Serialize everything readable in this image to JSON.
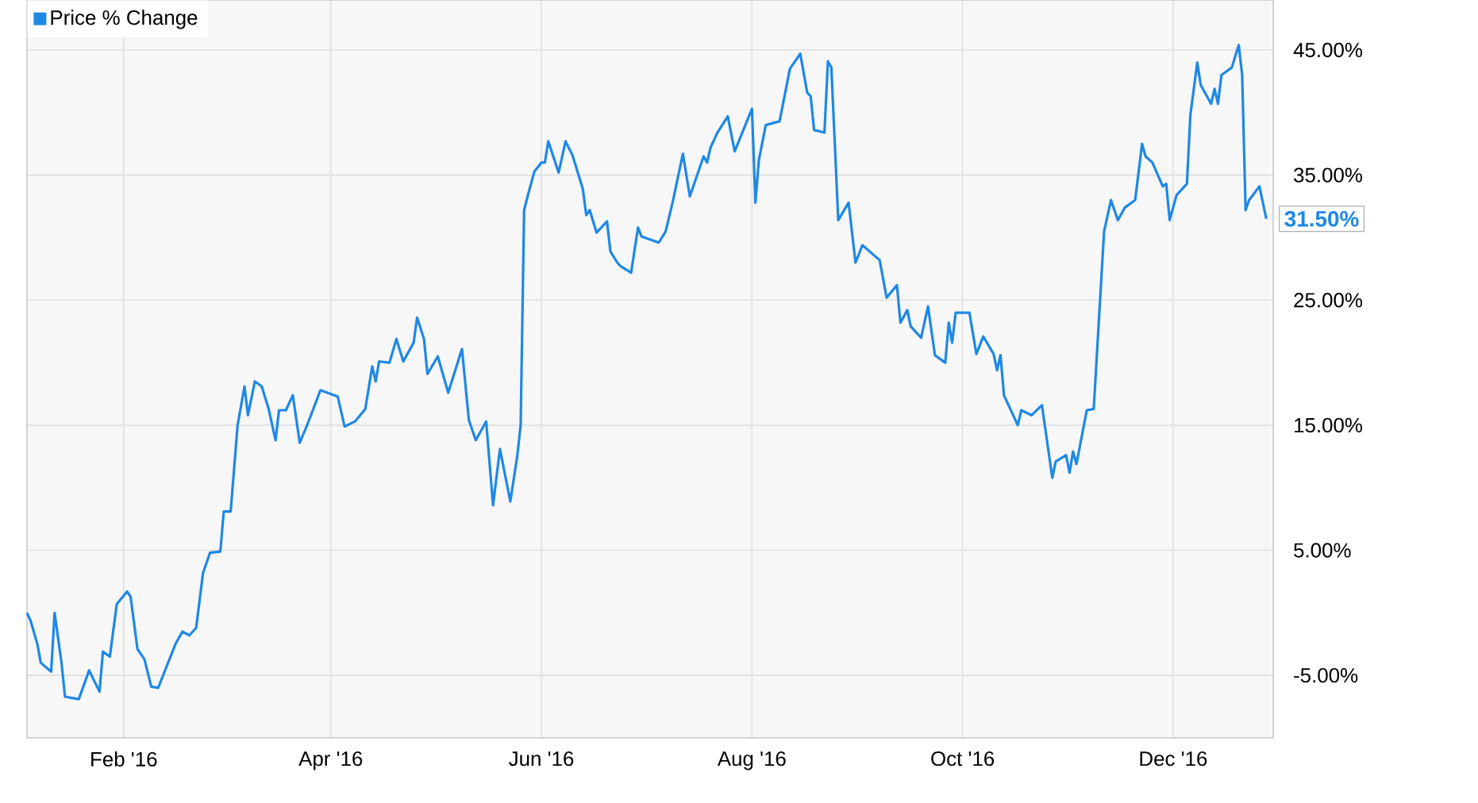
{
  "chart_data": {
    "type": "line",
    "xlim": [
      "2016-01-04",
      "2016-12-30"
    ],
    "ylim": [
      -10,
      49
    ],
    "xticks": [
      {
        "value": "2016-02-01",
        "label": "Feb '16"
      },
      {
        "value": "2016-04-01",
        "label": "Apr '16"
      },
      {
        "value": "2016-06-01",
        "label": "Jun '16"
      },
      {
        "value": "2016-08-01",
        "label": "Aug '16"
      },
      {
        "value": "2016-10-01",
        "label": "Oct '16"
      },
      {
        "value": "2016-12-01",
        "label": "Dec '16"
      }
    ],
    "yticks": [
      {
        "value": -5,
        "label": "-5.00%"
      },
      {
        "value": 5,
        "label": "5.00%"
      },
      {
        "value": 15,
        "label": "15.00%"
      },
      {
        "value": 25,
        "label": "25.00%"
      },
      {
        "value": 35,
        "label": "35.00%"
      },
      {
        "value": 45,
        "label": "45.00%"
      }
    ],
    "grid": true,
    "legend": "top left",
    "marker": "none",
    "annotations": [
      {
        "text": "31.50%",
        "x": "2016-12-28",
        "y": 31.5
      }
    ],
    "series": [
      {
        "name": "Price % Change",
        "color": "#1e88e5",
        "x": [
          "2016-01-04",
          "2016-01-05",
          "2016-01-07",
          "2016-01-08",
          "2016-01-11",
          "2016-01-12",
          "2016-01-14",
          "2016-01-15",
          "2016-01-19",
          "2016-01-22",
          "2016-01-25",
          "2016-01-26",
          "2016-01-28",
          "2016-01-30",
          "2016-02-02",
          "2016-02-03",
          "2016-02-05",
          "2016-02-07",
          "2016-02-09",
          "2016-02-11",
          "2016-02-16",
          "2016-02-18",
          "2016-02-20",
          "2016-02-22",
          "2016-02-24",
          "2016-02-26",
          "2016-02-29",
          "2016-03-01",
          "2016-03-03",
          "2016-03-05",
          "2016-03-07",
          "2016-03-08",
          "2016-03-10",
          "2016-03-12",
          "2016-03-14",
          "2016-03-16",
          "2016-03-17",
          "2016-03-19",
          "2016-03-21",
          "2016-03-23",
          "2016-03-25",
          "2016-03-29",
          "2016-04-03",
          "2016-04-05",
          "2016-04-08",
          "2016-04-11",
          "2016-04-13",
          "2016-04-14",
          "2016-04-15",
          "2016-04-18",
          "2016-04-20",
          "2016-04-22",
          "2016-04-25",
          "2016-04-26",
          "2016-04-28",
          "2016-04-29",
          "2016-05-02",
          "2016-05-05",
          "2016-05-09",
          "2016-05-11",
          "2016-05-13",
          "2016-05-16",
          "2016-05-18",
          "2016-05-20",
          "2016-05-23",
          "2016-05-25",
          "2016-05-26",
          "2016-05-27",
          "2016-05-28",
          "2016-05-30",
          "2016-06-01",
          "2016-06-02",
          "2016-06-03",
          "2016-06-06",
          "2016-06-08",
          "2016-06-10",
          "2016-06-13",
          "2016-06-14",
          "2016-06-15",
          "2016-06-17",
          "2016-06-20",
          "2016-06-21",
          "2016-06-23",
          "2016-06-24",
          "2016-06-27",
          "2016-06-29",
          "2016-06-30",
          "2016-07-05",
          "2016-07-07",
          "2016-07-09",
          "2016-07-12",
          "2016-07-14",
          "2016-07-18",
          "2016-07-19",
          "2016-07-20",
          "2016-07-22",
          "2016-07-25",
          "2016-07-27",
          "2016-08-01",
          "2016-08-02",
          "2016-08-03",
          "2016-08-05",
          "2016-08-09",
          "2016-08-12",
          "2016-08-15",
          "2016-08-17",
          "2016-08-18",
          "2016-08-19",
          "2016-08-22",
          "2016-08-23",
          "2016-08-24",
          "2016-08-26",
          "2016-08-29",
          "2016-08-31",
          "2016-09-02",
          "2016-09-07",
          "2016-09-09",
          "2016-09-12",
          "2016-09-13",
          "2016-09-15",
          "2016-09-16",
          "2016-09-19",
          "2016-09-21",
          "2016-09-23",
          "2016-09-26",
          "2016-09-27",
          "2016-09-28",
          "2016-09-29",
          "2016-10-03",
          "2016-10-05",
          "2016-10-07",
          "2016-10-10",
          "2016-10-11",
          "2016-10-12",
          "2016-10-13",
          "2016-10-17",
          "2016-10-18",
          "2016-10-21",
          "2016-10-24",
          "2016-10-27",
          "2016-10-28",
          "2016-10-31",
          "2016-11-01",
          "2016-11-02",
          "2016-11-03",
          "2016-11-06",
          "2016-11-08",
          "2016-11-11",
          "2016-11-13",
          "2016-11-15",
          "2016-11-17",
          "2016-11-20",
          "2016-11-22",
          "2016-11-23",
          "2016-11-25",
          "2016-11-28",
          "2016-11-29",
          "2016-11-30",
          "2016-12-02",
          "2016-12-05",
          "2016-12-06",
          "2016-12-08",
          "2016-12-09",
          "2016-12-12",
          "2016-12-13",
          "2016-12-14",
          "2016-12-15",
          "2016-12-18",
          "2016-12-20",
          "2016-12-21",
          "2016-12-22",
          "2016-12-23",
          "2016-12-26",
          "2016-12-28"
        ],
        "values": [
          0,
          -0.6,
          -2.5,
          -4.0,
          -4.7,
          0,
          -4,
          -6.7,
          -6.9,
          -4.6,
          -6.3,
          -3.1,
          -3.5,
          0.7,
          1.7,
          1.3,
          -2.9,
          -3.7,
          -5.9,
          -6.0,
          -2.5,
          -1.5,
          -1.8,
          -1.2,
          3.2,
          4.8,
          4.9,
          8.1,
          8.1,
          15.0,
          18.1,
          15.8,
          18.5,
          18.1,
          16.3,
          13.8,
          16.2,
          16.2,
          17.4,
          13.6,
          14.9,
          17.8,
          17.3,
          14.9,
          15.3,
          16.3,
          19.7,
          18.5,
          20.1,
          20.0,
          21.9,
          20.1,
          21.6,
          23.6,
          21.9,
          19.1,
          20.5,
          17.6,
          21.1,
          15.4,
          13.8,
          15.3,
          8.6,
          13.1,
          8.9,
          12.5,
          15.0,
          32.2,
          33.3,
          35.3,
          36.0,
          36.0,
          37.7,
          35.2,
          37.7,
          36.6,
          33.9,
          31.8,
          32.2,
          30.4,
          31.3,
          28.9,
          28.0,
          27.7,
          27.2,
          30.8,
          30.1,
          29.6,
          30.5,
          32.8,
          36.7,
          33.3,
          36.5,
          36.0,
          37.2,
          38.4,
          39.7,
          36.9,
          40.3,
          32.8,
          36.2,
          39.0,
          39.3,
          43.5,
          44.7,
          41.6,
          41.3,
          38.6,
          38.4,
          44.1,
          43.6,
          31.4,
          32.8,
          28.0,
          29.4,
          28.2,
          25.2,
          26.2,
          23.2,
          24.2,
          22.9,
          22.0,
          24.5,
          20.6,
          20.0,
          23.2,
          21.6,
          24.0,
          24.0,
          20.7,
          22.1,
          20.7,
          19.4,
          20.6,
          17.4,
          15.0,
          16.2,
          15.8,
          16.6,
          10.8,
          12.1,
          12.6,
          11.2,
          12.9,
          11.9,
          16.2,
          16.3,
          30.5,
          33.0,
          31.4,
          32.4,
          33.0,
          37.5,
          36.5,
          36.0,
          34.1,
          34.3,
          31.4,
          33.4,
          34.3,
          39.8,
          44.0,
          42.2,
          40.7,
          41.9,
          40.7,
          43.0,
          43.6,
          45.4,
          43.0,
          32.2,
          33.0,
          34.1,
          31.5
        ]
      }
    ]
  }
}
